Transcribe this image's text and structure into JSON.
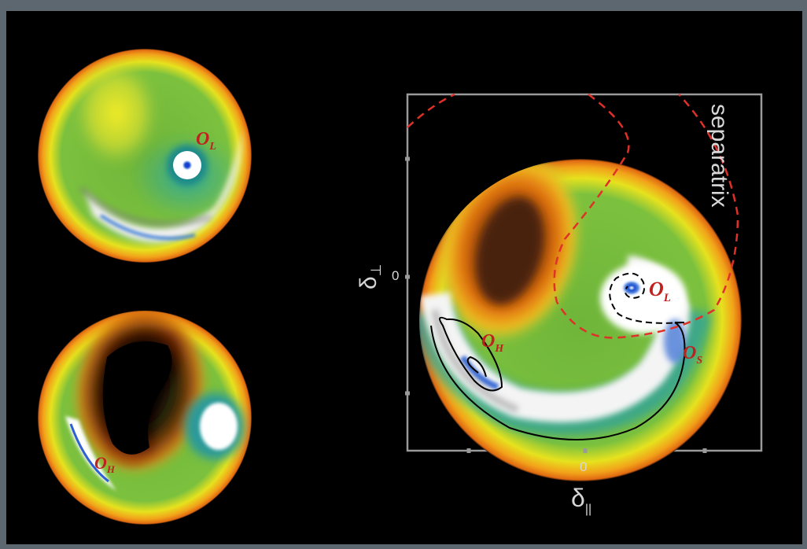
{
  "figure": {
    "top_left": {
      "label_main": "O",
      "label_sub": "L"
    },
    "bottom_left": {
      "label_main": "O",
      "label_sub": "H"
    },
    "main": {
      "label_OL_main": "O",
      "label_OL_sub": "L",
      "label_OH_main": "O",
      "label_OH_sub": "H",
      "label_OS_main": "O",
      "label_OS_sub": "S",
      "separatrix": "separatrix",
      "y_axis_symbol": "δ",
      "y_axis_sub": "⊥",
      "x_axis_symbol": "δ",
      "x_axis_sub": "||",
      "y_tick_zero": "0",
      "x_tick_zero": "0"
    },
    "colors": {
      "background": "#000000",
      "frame": "#5d6770",
      "separatrix": "#e0302a",
      "trajectory": "#000000",
      "label": "#c0201e",
      "axis": "#9a9a9a"
    }
  }
}
